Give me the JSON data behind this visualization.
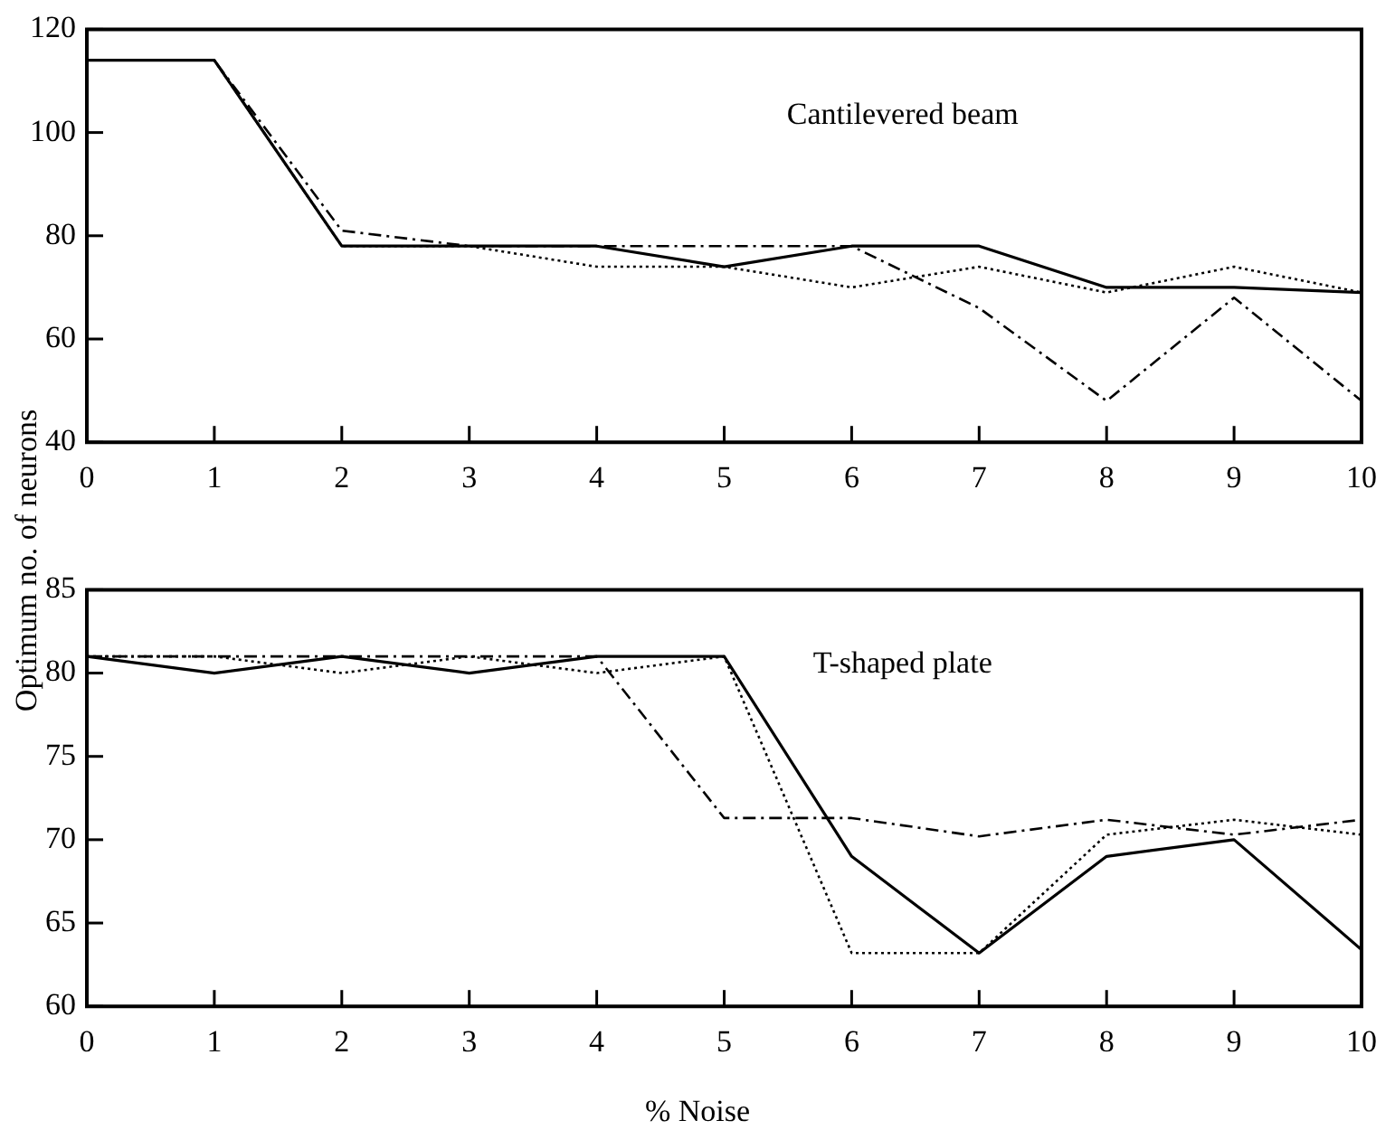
{
  "chart_data": [
    {
      "type": "line",
      "ylabel": "Optimum no. of neurons",
      "annotations": [
        "Cantilevered beam"
      ],
      "x": [
        0,
        1,
        2,
        3,
        4,
        5,
        6,
        7,
        8,
        9,
        10
      ],
      "xlim": [
        0,
        10
      ],
      "xticks": [
        0,
        1,
        2,
        3,
        4,
        5,
        6,
        7,
        8,
        9,
        10
      ],
      "ylim": [
        40,
        120
      ],
      "yticks": [
        40,
        60,
        80,
        100,
        120
      ],
      "grid": false,
      "legend": false,
      "marker": "none",
      "series": [
        {
          "color": "#000000",
          "line_style": "solid",
          "values": [
            114,
            114,
            78,
            78,
            78,
            74,
            78,
            78,
            70,
            70,
            69
          ]
        },
        {
          "color": "#000000",
          "line_style": "dotted",
          "values": [
            114,
            114,
            78,
            78,
            74,
            74,
            70,
            74,
            69,
            74,
            69
          ]
        },
        {
          "color": "#000000",
          "line_style": "dashed",
          "values": [
            114,
            114,
            81,
            78,
            78,
            78,
            78,
            66,
            48,
            68,
            48
          ]
        }
      ]
    },
    {
      "type": "line",
      "xlabel": "% Noise",
      "annotations": [
        "T-shaped plate"
      ],
      "x": [
        0,
        1,
        2,
        3,
        4,
        5,
        6,
        7,
        8,
        9,
        10
      ],
      "xlim": [
        0,
        10
      ],
      "xticks": [
        0,
        1,
        2,
        3,
        4,
        5,
        6,
        7,
        8,
        9,
        10
      ],
      "ylim": [
        60,
        85
      ],
      "yticks": [
        60,
        65,
        70,
        75,
        80,
        85
      ],
      "grid": false,
      "legend": false,
      "marker": "none",
      "series": [
        {
          "color": "#000000",
          "line_style": "solid",
          "values": [
            81,
            80,
            81,
            80,
            81,
            81,
            69,
            63.2,
            69,
            70,
            63.4
          ]
        },
        {
          "color": "#000000",
          "line_style": "dotted",
          "values": [
            81,
            81,
            80,
            81,
            80,
            81,
            63.2,
            63.2,
            70.3,
            71.2,
            70.3
          ]
        },
        {
          "color": "#000000",
          "line_style": "dashed",
          "values": [
            81,
            81,
            81,
            81,
            81,
            71.3,
            71.3,
            70.2,
            71.2,
            70.3,
            71.2
          ]
        }
      ]
    }
  ]
}
